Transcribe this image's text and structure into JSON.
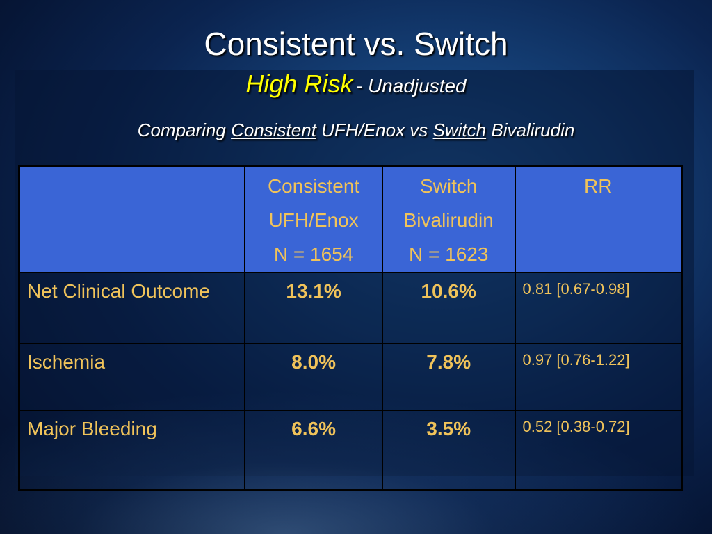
{
  "slide": {
    "title": "Consistent vs. Switch",
    "subtitle_risk": "High Risk",
    "subtitle_adjust": "- Unadjusted",
    "comparing": {
      "prefix": "Comparing",
      "consistent": "Consistent",
      "middle": "UFH/Enox vs",
      "switch": "Switch",
      "suffix": "Bivalirudin"
    }
  },
  "table": {
    "columns": [
      {
        "lines": [
          "",
          "",
          ""
        ]
      },
      {
        "lines": [
          "Consistent",
          "UFH/Enox",
          "N = 1654"
        ]
      },
      {
        "lines": [
          "Switch",
          "Bivalirudin",
          "N = 1623"
        ]
      },
      {
        "lines": [
          "RR",
          "",
          ""
        ]
      }
    ],
    "rows": [
      {
        "label": "Net Clinical Outcome",
        "consistent": "13.1%",
        "switch": "10.6%",
        "rr": "0.81 [0.67-0.98]"
      },
      {
        "label": "Ischemia",
        "consistent": "8.0%",
        "switch": "7.8%",
        "rr": "0.97 [0.76-1.22]"
      },
      {
        "label": "Major Bleeding",
        "consistent": "6.6%",
        "switch": "3.5%",
        "rr": "0.52 [0.38-0.72]"
      }
    ]
  },
  "colors": {
    "header_bg": "#3a65d6",
    "cell_text": "#f0c35a",
    "subtitle_highlight": "#ffff00",
    "title_text": "#ffffff"
  }
}
